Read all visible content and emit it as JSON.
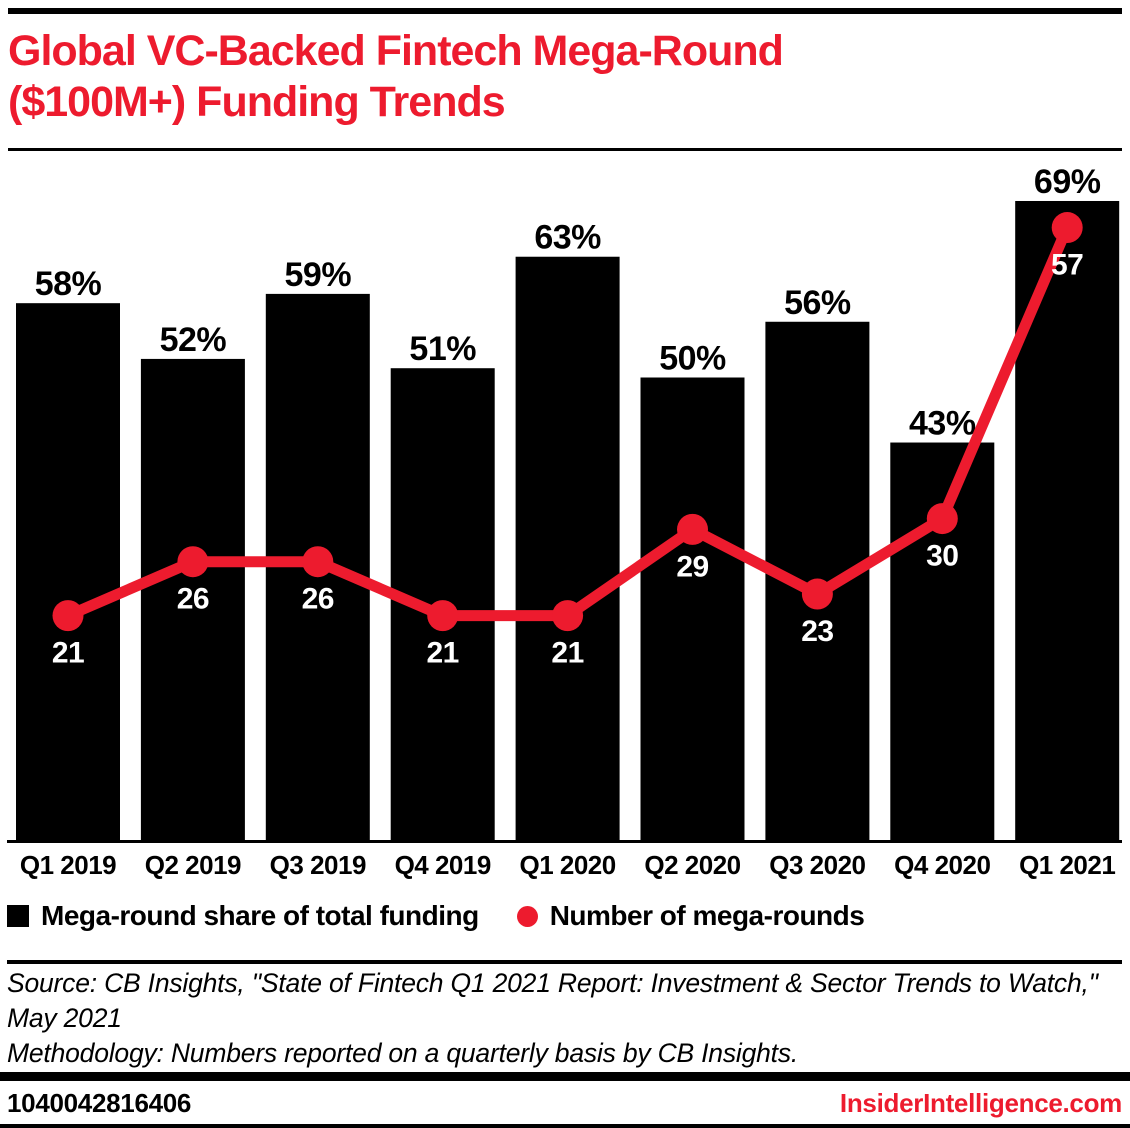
{
  "header": {
    "title_line1": "Global VC-Backed Fintech Mega-Round",
    "title_line2": "($100M+) Funding Trends"
  },
  "chart_data": {
    "type": "bar",
    "subtype": "combo-bar-line",
    "title": "Global VC-Backed Fintech Mega-Round ($100M+) Funding Trends",
    "categories": [
      "Q1 2019",
      "Q2 2019",
      "Q3 2019",
      "Q4 2019",
      "Q1 2020",
      "Q2 2020",
      "Q3 2020",
      "Q4 2020",
      "Q1 2021"
    ],
    "series": [
      {
        "name": "Mega-round share of total funding",
        "type": "bar",
        "unit": "%",
        "values": [
          58,
          52,
          59,
          51,
          63,
          50,
          56,
          43,
          69
        ],
        "color": "#000000",
        "value_labels": "above bars, black bold"
      },
      {
        "name": "Number of mega-rounds",
        "type": "line",
        "unit": "",
        "values": [
          21,
          26,
          26,
          21,
          21,
          29,
          23,
          30,
          57
        ],
        "color": "#ed1b2e",
        "value_labels": "below markers, white bold"
      }
    ],
    "xlabel": "",
    "ylabel": "",
    "grid": false,
    "y_axis_shown": false,
    "legend_position": "bottom"
  },
  "legend": {
    "items": [
      {
        "label": "Mega-round share of total funding",
        "marker": "black-square",
        "color": "#000000"
      },
      {
        "label": "Number of mega-rounds",
        "marker": "red-circle",
        "color": "#ed1b2e"
      }
    ]
  },
  "notes": {
    "source": "Source: CB Insights, \"State of Fintech Q1 2021 Report: Investment & Sector Trends to Watch,\" May 2021",
    "methodology": "Methodology: Numbers reported on a quarterly basis by CB Insights."
  },
  "footer": {
    "chart_id": "1040042816406",
    "brand": "InsiderIntelligence.com"
  },
  "colors": {
    "accent_red": "#ed1b2e",
    "bar_fill": "#000000",
    "count_label_text": "#ffffff",
    "background": "#ffffff"
  }
}
